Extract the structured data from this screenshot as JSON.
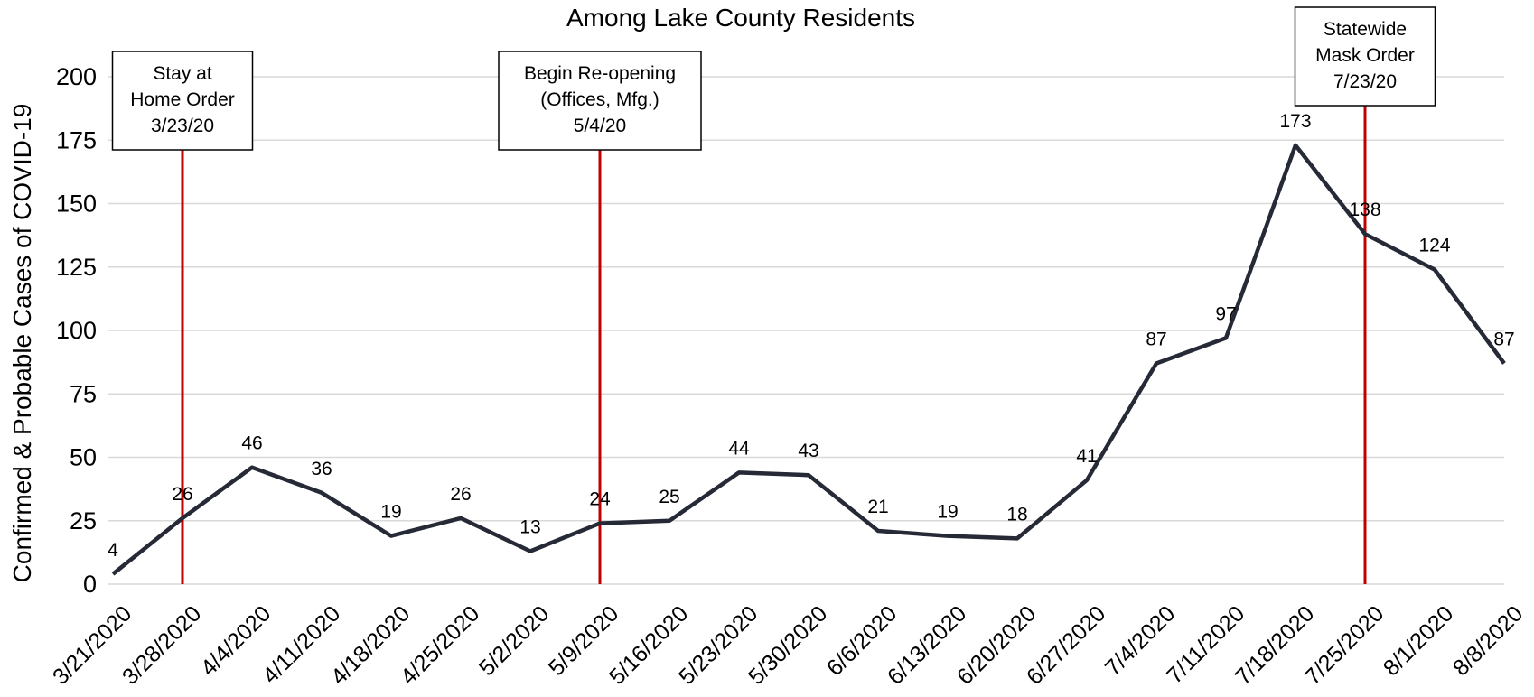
{
  "chart_data": {
    "type": "line",
    "title": "Among Lake County Residents",
    "ylabel": "Confirmed & Probable Cases of COVID-19",
    "xlabel": "",
    "ylim": [
      0,
      200
    ],
    "yticks": [
      0,
      25,
      50,
      75,
      100,
      125,
      150,
      175,
      200
    ],
    "grid": true,
    "categories": [
      "3/21/2020",
      "3/28/2020",
      "4/4/2020",
      "4/11/2020",
      "4/18/2020",
      "4/25/2020",
      "5/2/2020",
      "5/9/2020",
      "5/16/2020",
      "5/23/2020",
      "5/30/2020",
      "6/6/2020",
      "6/13/2020",
      "6/20/2020",
      "6/27/2020",
      "7/4/2020",
      "7/11/2020",
      "7/18/2020",
      "7/25/2020",
      "8/1/2020",
      "8/8/2020"
    ],
    "series": [
      {
        "values": [
          4,
          26,
          46,
          36,
          19,
          26,
          13,
          24,
          25,
          44,
          43,
          21,
          19,
          18,
          41,
          87,
          97,
          173,
          138,
          124,
          87
        ]
      }
    ],
    "line_color": "#262a36",
    "annotation_color": "#c00000",
    "annotations": [
      {
        "lines": [
          "Stay at",
          "Home Order",
          "3/23/20"
        ],
        "at_index": 1
      },
      {
        "lines": [
          "Begin Re-opening",
          "(Offices, Mfg.)",
          "5/4/20"
        ],
        "at_index": 7
      },
      {
        "lines": [
          "Statewide",
          "Mask Order",
          "7/23/20"
        ],
        "at_index": 18
      }
    ]
  }
}
